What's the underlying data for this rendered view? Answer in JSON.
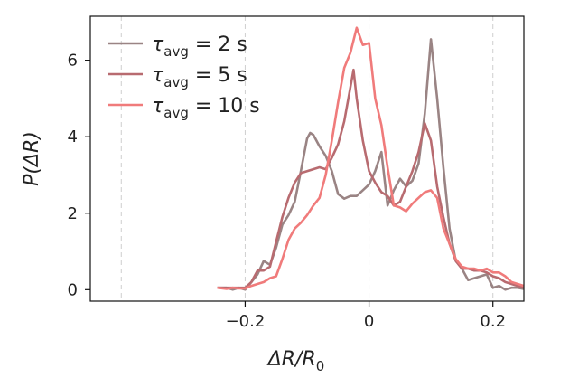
{
  "chart_data": {
    "type": "line",
    "xlabel": {
      "main": "ΔR/R",
      "sub": "0"
    },
    "ylabel": "P(ΔR)",
    "xlim": [
      -0.45,
      0.25
    ],
    "ylim": [
      -0.3,
      7.15
    ],
    "x_ticks": [
      {
        "value": -0.2,
        "label": "−0.2"
      },
      {
        "value": 0,
        "label": "0"
      },
      {
        "value": 0.2,
        "label": "0.2"
      }
    ],
    "y_ticks": [
      {
        "value": 0,
        "label": "0"
      },
      {
        "value": 2,
        "label": "2"
      },
      {
        "value": 4,
        "label": "4"
      },
      {
        "value": 6,
        "label": "6"
      }
    ],
    "vertical_reference_lines": [
      -0.4,
      -0.2,
      0,
      0.2
    ],
    "legend_position": "top-left",
    "series": [
      {
        "name": {
          "symbol": "τ",
          "sub": "avg",
          "rest": " = 2 s"
        },
        "color": "#9a8484",
        "points": [
          [
            -0.245,
            0.05
          ],
          [
            -0.23,
            0.05
          ],
          [
            -0.22,
            0.0
          ],
          [
            -0.21,
            0.05
          ],
          [
            -0.2,
            0.0
          ],
          [
            -0.19,
            0.2
          ],
          [
            -0.18,
            0.4
          ],
          [
            -0.17,
            0.75
          ],
          [
            -0.16,
            0.65
          ],
          [
            -0.15,
            1.1
          ],
          [
            -0.14,
            1.7
          ],
          [
            -0.13,
            1.95
          ],
          [
            -0.12,
            2.3
          ],
          [
            -0.11,
            3.1
          ],
          [
            -0.1,
            3.95
          ],
          [
            -0.095,
            4.1
          ],
          [
            -0.09,
            4.05
          ],
          [
            -0.08,
            3.75
          ],
          [
            -0.07,
            3.5
          ],
          [
            -0.06,
            3.1
          ],
          [
            -0.05,
            2.5
          ],
          [
            -0.04,
            2.38
          ],
          [
            -0.03,
            2.45
          ],
          [
            -0.02,
            2.45
          ],
          [
            -0.01,
            2.6
          ],
          [
            0.0,
            2.75
          ],
          [
            0.01,
            3.1
          ],
          [
            0.02,
            3.6
          ],
          [
            0.03,
            2.2
          ],
          [
            0.04,
            2.6
          ],
          [
            0.05,
            2.9
          ],
          [
            0.06,
            2.7
          ],
          [
            0.07,
            2.85
          ],
          [
            0.08,
            3.3
          ],
          [
            0.09,
            4.6
          ],
          [
            0.1,
            6.55
          ],
          [
            0.11,
            5.0
          ],
          [
            0.12,
            3.2
          ],
          [
            0.13,
            1.6
          ],
          [
            0.14,
            0.75
          ],
          [
            0.15,
            0.55
          ],
          [
            0.16,
            0.25
          ],
          [
            0.17,
            0.3
          ],
          [
            0.18,
            0.35
          ],
          [
            0.19,
            0.4
          ],
          [
            0.2,
            0.05
          ],
          [
            0.21,
            0.1
          ],
          [
            0.22,
            0.0
          ],
          [
            0.23,
            0.05
          ],
          [
            0.24,
            0.05
          ],
          [
            0.25,
            0.02
          ]
        ]
      },
      {
        "name": {
          "symbol": "τ",
          "sub": "avg",
          "rest": " = 5 s"
        },
        "color": "#b86b70",
        "points": [
          [
            -0.245,
            0.05
          ],
          [
            -0.23,
            0.05
          ],
          [
            -0.22,
            0.05
          ],
          [
            -0.21,
            0.05
          ],
          [
            -0.2,
            0.05
          ],
          [
            -0.19,
            0.2
          ],
          [
            -0.18,
            0.5
          ],
          [
            -0.17,
            0.5
          ],
          [
            -0.16,
            0.6
          ],
          [
            -0.15,
            1.25
          ],
          [
            -0.14,
            1.9
          ],
          [
            -0.13,
            2.4
          ],
          [
            -0.12,
            2.8
          ],
          [
            -0.11,
            3.05
          ],
          [
            -0.1,
            3.1
          ],
          [
            -0.09,
            3.15
          ],
          [
            -0.08,
            3.2
          ],
          [
            -0.07,
            3.15
          ],
          [
            -0.06,
            3.45
          ],
          [
            -0.05,
            3.8
          ],
          [
            -0.04,
            4.4
          ],
          [
            -0.03,
            5.3
          ],
          [
            -0.025,
            5.75
          ],
          [
            -0.02,
            5.0
          ],
          [
            -0.01,
            3.9
          ],
          [
            0.0,
            3.1
          ],
          [
            0.01,
            2.8
          ],
          [
            0.02,
            2.55
          ],
          [
            0.03,
            2.45
          ],
          [
            0.04,
            2.2
          ],
          [
            0.05,
            2.3
          ],
          [
            0.06,
            2.7
          ],
          [
            0.07,
            3.1
          ],
          [
            0.08,
            3.6
          ],
          [
            0.09,
            4.35
          ],
          [
            0.1,
            3.9
          ],
          [
            0.11,
            2.7
          ],
          [
            0.12,
            1.9
          ],
          [
            0.13,
            1.2
          ],
          [
            0.14,
            0.75
          ],
          [
            0.15,
            0.55
          ],
          [
            0.16,
            0.55
          ],
          [
            0.17,
            0.5
          ],
          [
            0.18,
            0.5
          ],
          [
            0.19,
            0.45
          ],
          [
            0.2,
            0.35
          ],
          [
            0.21,
            0.3
          ],
          [
            0.22,
            0.2
          ],
          [
            0.23,
            0.15
          ],
          [
            0.24,
            0.1
          ],
          [
            0.25,
            0.05
          ]
        ]
      },
      {
        "name": {
          "symbol": "τ",
          "sub": "avg",
          "rest": " = 10 s"
        },
        "color": "#f07b7b",
        "points": [
          [
            -0.245,
            0.05
          ],
          [
            -0.23,
            0.02
          ],
          [
            -0.22,
            0.05
          ],
          [
            -0.21,
            0.03
          ],
          [
            -0.2,
            0.03
          ],
          [
            -0.19,
            0.1
          ],
          [
            -0.18,
            0.15
          ],
          [
            -0.17,
            0.2
          ],
          [
            -0.16,
            0.3
          ],
          [
            -0.15,
            0.35
          ],
          [
            -0.14,
            0.8
          ],
          [
            -0.13,
            1.3
          ],
          [
            -0.12,
            1.6
          ],
          [
            -0.11,
            1.75
          ],
          [
            -0.1,
            1.95
          ],
          [
            -0.09,
            2.2
          ],
          [
            -0.08,
            2.4
          ],
          [
            -0.07,
            3.0
          ],
          [
            -0.06,
            3.9
          ],
          [
            -0.05,
            4.9
          ],
          [
            -0.04,
            5.8
          ],
          [
            -0.03,
            6.2
          ],
          [
            -0.02,
            6.85
          ],
          [
            -0.01,
            6.4
          ],
          [
            0.0,
            6.45
          ],
          [
            0.01,
            5.0
          ],
          [
            0.02,
            4.3
          ],
          [
            0.03,
            3.2
          ],
          [
            0.04,
            2.2
          ],
          [
            0.05,
            2.15
          ],
          [
            0.06,
            2.05
          ],
          [
            0.07,
            2.25
          ],
          [
            0.08,
            2.4
          ],
          [
            0.09,
            2.55
          ],
          [
            0.1,
            2.6
          ],
          [
            0.11,
            2.4
          ],
          [
            0.12,
            1.6
          ],
          [
            0.13,
            1.2
          ],
          [
            0.14,
            0.8
          ],
          [
            0.15,
            0.6
          ],
          [
            0.16,
            0.55
          ],
          [
            0.17,
            0.55
          ],
          [
            0.18,
            0.5
          ],
          [
            0.19,
            0.55
          ],
          [
            0.2,
            0.45
          ],
          [
            0.21,
            0.45
          ],
          [
            0.22,
            0.35
          ],
          [
            0.23,
            0.2
          ],
          [
            0.24,
            0.15
          ],
          [
            0.25,
            0.1
          ]
        ]
      }
    ]
  }
}
